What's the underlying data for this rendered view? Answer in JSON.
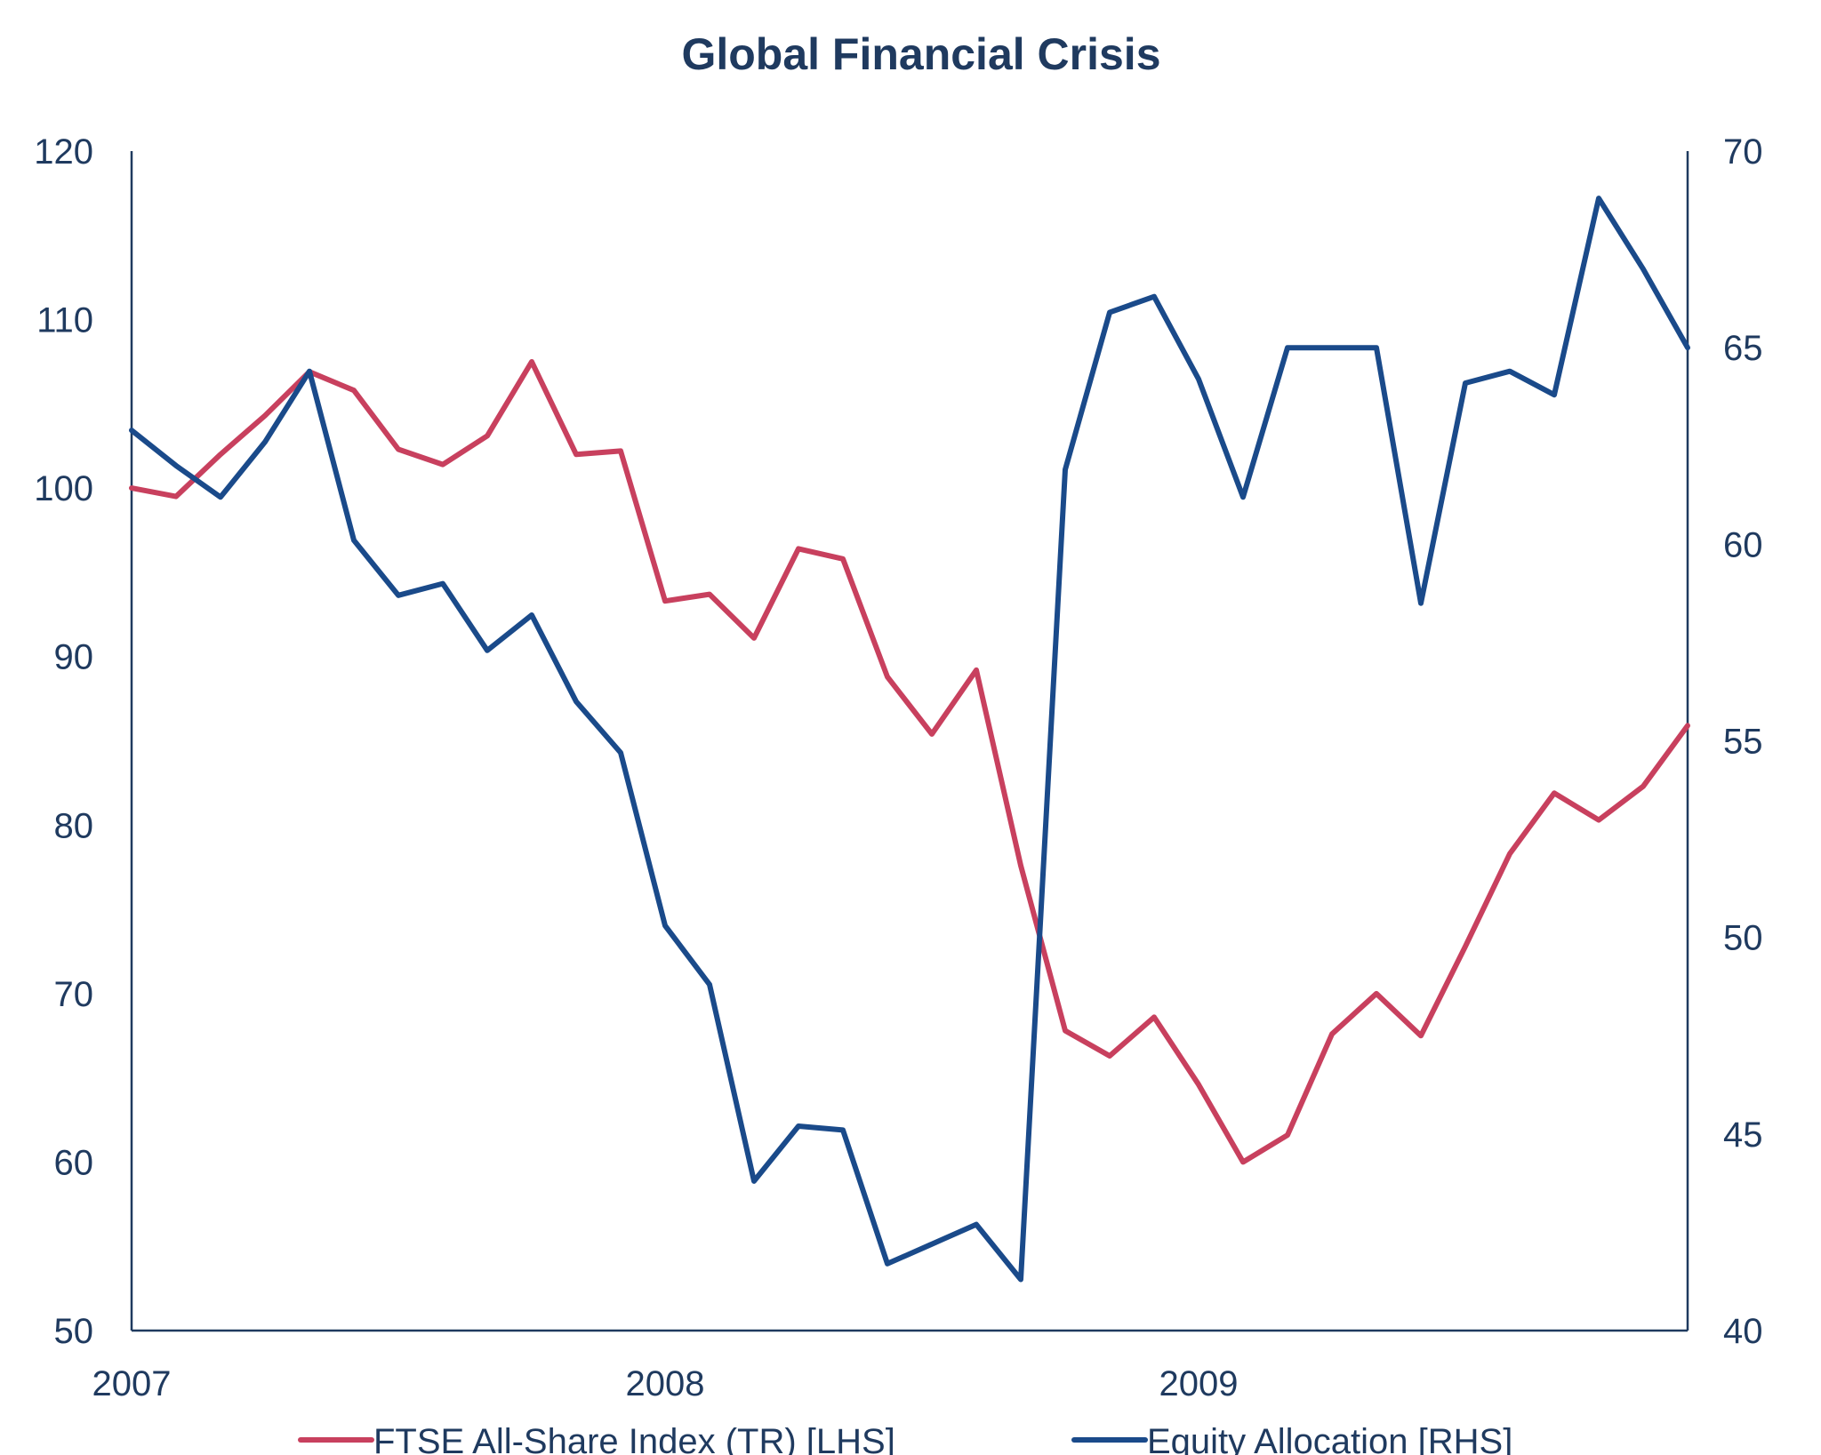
{
  "chart_data": {
    "type": "line",
    "title": "Global Financial Crisis",
    "x_tick_labels": [
      "2007",
      "2008",
      "2009"
    ],
    "y_left": {
      "min": 50,
      "max": 120,
      "step": 10,
      "ticks": [
        "50",
        "60",
        "70",
        "80",
        "90",
        "100",
        "110",
        "120"
      ]
    },
    "y_right": {
      "min": 40,
      "max": 70,
      "step": 5,
      "ticks": [
        "40",
        "45",
        "50",
        "55",
        "60",
        "65",
        "70"
      ]
    },
    "grid": false,
    "legend_position": "bottom",
    "series": [
      {
        "name": "FTSE All-Share Index (TR) [LHS]",
        "axis": "left",
        "color": "#c8405e",
        "values": [
          100,
          99.5,
          102,
          104.3,
          106.9,
          105.8,
          102.3,
          101.4,
          103.1,
          107.5,
          102,
          102.2,
          93.3,
          93.7,
          91.1,
          96.4,
          95.8,
          88.8,
          85.4,
          89.2,
          77.6,
          67.8,
          66.3,
          68.6,
          64.6,
          60,
          61.6,
          67.6,
          70,
          67.5,
          72.8,
          78.3,
          81.9,
          80.3,
          82.3,
          85.9
        ]
      },
      {
        "name": "Equity Allocation [RHS]",
        "axis": "right",
        "color": "#1a4a8a",
        "values": [
          62.9,
          62,
          61.2,
          62.6,
          64.4,
          60.1,
          58.7,
          59,
          57.3,
          58.2,
          56,
          54.7,
          50.3,
          48.8,
          43.8,
          45.2,
          45.1,
          41.7,
          42.2,
          42.7,
          41.3,
          61.9,
          65.9,
          66.3,
          64.2,
          61.2,
          65,
          65,
          65,
          58.5,
          64.1,
          64.4,
          63.8,
          68.8,
          67,
          65
        ]
      }
    ]
  }
}
